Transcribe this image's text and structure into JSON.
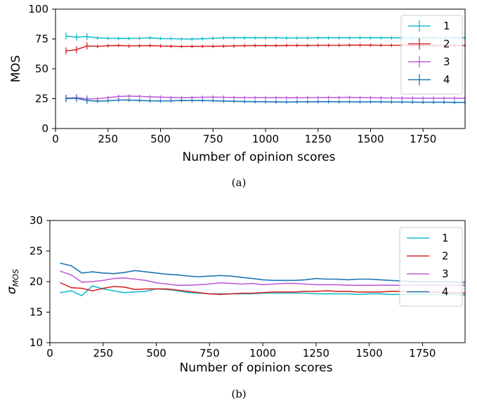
{
  "chart_data": [
    {
      "type": "line",
      "xlabel": "Number of opinion scores",
      "ylabel": "MOS",
      "caption": "(a)",
      "xlim": [
        0,
        1950
      ],
      "ylim": [
        0,
        100
      ],
      "xticks": [
        0,
        250,
        500,
        750,
        1000,
        1250,
        1500,
        1750
      ],
      "yticks": [
        0,
        25,
        50,
        75,
        100
      ],
      "error_bars": true,
      "legend_position": "top-right",
      "x": [
        50,
        100,
        150,
        200,
        250,
        300,
        350,
        400,
        450,
        500,
        550,
        600,
        650,
        700,
        750,
        800,
        850,
        900,
        950,
        1000,
        1050,
        1100,
        1150,
        1200,
        1250,
        1300,
        1350,
        1400,
        1450,
        1500,
        1550,
        1600,
        1650,
        1700,
        1750,
        1800,
        1850,
        1900,
        1950
      ],
      "series": [
        {
          "name": "1",
          "color": "#17becf",
          "values": [
            77.5,
            76.5,
            77.0,
            75.8,
            75.6,
            75.5,
            75.5,
            75.6,
            76.0,
            75.4,
            75.3,
            75.0,
            74.9,
            75.2,
            75.6,
            75.9,
            76.0,
            76.0,
            76.0,
            76.0,
            76.0,
            75.9,
            75.9,
            75.9,
            76.0,
            76.0,
            76.0,
            76.0,
            76.1,
            76.0,
            76.0,
            76.0,
            75.9,
            75.9,
            76.0,
            76.0,
            76.0,
            76.0,
            76.0
          ]
        },
        {
          "name": "2",
          "color": "#d62728",
          "values": [
            65.0,
            66.0,
            69.2,
            68.8,
            69.3,
            69.6,
            69.1,
            69.3,
            69.5,
            69.1,
            68.9,
            68.7,
            68.7,
            68.8,
            68.9,
            69.0,
            69.2,
            69.4,
            69.5,
            69.5,
            69.5,
            69.6,
            69.6,
            69.6,
            69.7,
            69.7,
            69.7,
            69.8,
            69.8,
            69.8,
            69.7,
            69.7,
            69.7,
            69.6,
            69.6,
            69.6,
            69.6,
            69.6,
            69.6
          ]
        },
        {
          "name": "3",
          "color": "#bf5fd6",
          "values": [
            25.5,
            25.8,
            24.8,
            25.0,
            25.8,
            26.8,
            27.2,
            26.9,
            26.5,
            26.3,
            26.0,
            25.8,
            26.0,
            26.2,
            26.3,
            26.2,
            26.0,
            25.9,
            25.9,
            25.8,
            25.8,
            25.7,
            25.8,
            25.9,
            25.9,
            26.0,
            26.0,
            26.1,
            25.9,
            25.8,
            25.7,
            25.6,
            25.5,
            25.4,
            25.4,
            25.4,
            25.4,
            25.4,
            25.4
          ]
        },
        {
          "name": "4",
          "color": "#1f77b4",
          "values": [
            25.0,
            25.3,
            23.5,
            23.0,
            23.2,
            23.8,
            23.9,
            23.5,
            23.2,
            23.1,
            23.2,
            23.5,
            23.4,
            23.4,
            23.3,
            23.0,
            22.8,
            22.6,
            22.5,
            22.4,
            22.3,
            22.2,
            22.3,
            22.4,
            22.5,
            22.5,
            22.4,
            22.4,
            22.3,
            22.3,
            22.3,
            22.2,
            22.2,
            22.1,
            22.0,
            22.0,
            22.0,
            21.9,
            21.9
          ]
        }
      ]
    },
    {
      "type": "line",
      "xlabel": "Number of opinion scores",
      "ylabel": "σ_MOS",
      "ylabel_main": "σ",
      "ylabel_sub": "MOS",
      "caption": "(b)",
      "xlim": [
        0,
        1950
      ],
      "ylim": [
        10,
        30
      ],
      "xticks": [
        0,
        250,
        500,
        750,
        1000,
        1250,
        1500,
        1750
      ],
      "yticks": [
        10,
        15,
        20,
        25,
        30
      ],
      "error_bars": false,
      "legend_position": "top-right",
      "x": [
        50,
        100,
        150,
        200,
        250,
        300,
        350,
        400,
        450,
        500,
        550,
        600,
        650,
        700,
        750,
        800,
        850,
        900,
        950,
        1000,
        1050,
        1100,
        1150,
        1200,
        1250,
        1300,
        1350,
        1400,
        1450,
        1500,
        1550,
        1600,
        1650,
        1700,
        1750,
        1800,
        1850,
        1900,
        1950
      ],
      "series": [
        {
          "name": "1",
          "color": "#17becf",
          "values": [
            18.2,
            18.5,
            17.7,
            19.3,
            18.8,
            18.5,
            18.2,
            18.3,
            18.4,
            18.8,
            18.7,
            18.5,
            18.2,
            18.1,
            18.0,
            18.0,
            18.0,
            18.0,
            18.0,
            18.1,
            18.1,
            18.1,
            18.1,
            18.1,
            18.0,
            18.0,
            18.0,
            18.0,
            17.9,
            18.0,
            18.0,
            17.9,
            17.9,
            17.9,
            17.9,
            17.9,
            17.9,
            17.9,
            17.8
          ]
        },
        {
          "name": "2",
          "color": "#d62728",
          "values": [
            19.8,
            19.0,
            18.9,
            18.5,
            18.9,
            19.2,
            19.1,
            18.7,
            18.8,
            18.8,
            18.8,
            18.6,
            18.4,
            18.2,
            18.0,
            17.9,
            18.0,
            18.1,
            18.1,
            18.2,
            18.3,
            18.3,
            18.3,
            18.4,
            18.4,
            18.5,
            18.4,
            18.4,
            18.3,
            18.3,
            18.3,
            18.4,
            18.4,
            18.3,
            18.3,
            18.3,
            18.2,
            18.2,
            18.1
          ]
        },
        {
          "name": "3",
          "color": "#bf5fd6",
          "values": [
            21.7,
            21.1,
            19.9,
            20.0,
            20.2,
            20.5,
            20.6,
            20.4,
            20.2,
            19.8,
            19.6,
            19.4,
            19.4,
            19.5,
            19.6,
            19.8,
            19.7,
            19.6,
            19.7,
            19.5,
            19.6,
            19.7,
            19.7,
            19.6,
            19.5,
            19.5,
            19.5,
            19.4,
            19.4,
            19.4,
            19.4,
            19.4,
            19.4,
            19.4,
            19.4,
            19.4,
            19.4,
            19.4,
            19.4
          ]
        },
        {
          "name": "4",
          "color": "#1f77b4",
          "values": [
            23.0,
            22.6,
            21.4,
            21.6,
            21.4,
            21.3,
            21.5,
            21.8,
            21.6,
            21.4,
            21.2,
            21.1,
            20.9,
            20.8,
            20.9,
            21.0,
            20.9,
            20.7,
            20.5,
            20.3,
            20.2,
            20.2,
            20.2,
            20.3,
            20.5,
            20.4,
            20.4,
            20.3,
            20.4,
            20.4,
            20.3,
            20.2,
            20.1,
            20.0,
            20.0,
            20.0,
            20.0,
            19.9,
            19.9
          ]
        }
      ]
    }
  ]
}
